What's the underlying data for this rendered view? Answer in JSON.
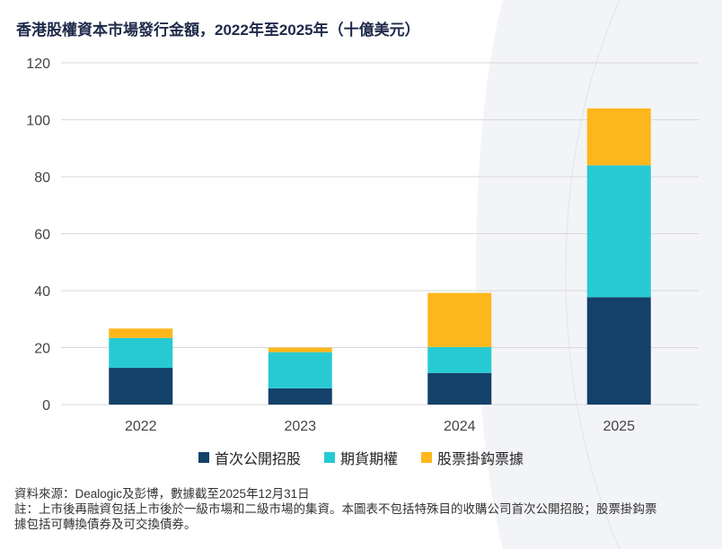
{
  "title": "香港股權資本市場發行金額，2022年至2025年（十億美元）",
  "chart_data": {
    "type": "bar",
    "stacked": true,
    "categories": [
      "2022",
      "2023",
      "2024",
      "2025"
    ],
    "series": [
      {
        "name": "首次公開招股",
        "color": "#14416a",
        "values": [
          12.9,
          5.7,
          11.1,
          37.7
        ]
      },
      {
        "name": "期貨期權",
        "color": "#27cad3",
        "values": [
          10.5,
          12.7,
          9.1,
          46.3
        ]
      },
      {
        "name": "股票掛鈎票據",
        "color": "#fdb71c",
        "values": [
          3.3,
          1.6,
          19.0,
          20.0
        ]
      }
    ],
    "ylim": [
      0,
      120
    ],
    "yticks": [
      "0",
      "20",
      "40",
      "60",
      "80",
      "100",
      "120"
    ],
    "grid": true,
    "legend": "bottom"
  },
  "notes": {
    "source": "資料來源：Dealogic及彭博，數據截至2025年12月31日",
    "note": "註：上市後再融資包括上市後於一級市場和二級市場的集資。本圖表不包括特殊目的收購公司首次公開招股；股票掛鈎票據包括可轉換債券及可交換債券。"
  }
}
